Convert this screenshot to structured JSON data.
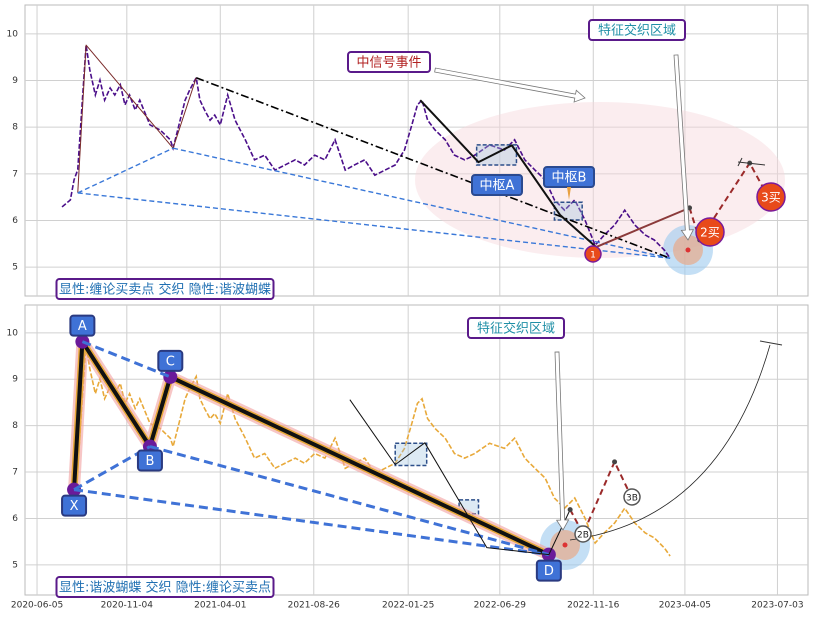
{
  "x_axis": {
    "xlim": [
      -13,
      833
    ],
    "xticks": [
      {
        "value": 0,
        "label": "2020-06-05"
      },
      {
        "value": 97,
        "label": "2020-11-04"
      },
      {
        "value": 198,
        "label": "2021-04-01"
      },
      {
        "value": 299,
        "label": "2021-08-26"
      },
      {
        "value": 401,
        "label": "2022-01-25"
      },
      {
        "value": 500,
        "label": "2022-06-29"
      },
      {
        "value": 601,
        "label": "2022-11-16"
      },
      {
        "value": 700,
        "label": "2023-04-05"
      },
      {
        "value": 800,
        "label": "2023-07-03"
      }
    ]
  },
  "chart_data": [
    {
      "type": "line",
      "ylim": [
        4.38,
        10.62
      ],
      "yticks": [
        5,
        6,
        7,
        8,
        9,
        10
      ],
      "grid": true,
      "x": [
        27,
        36,
        40,
        44,
        49,
        53,
        57,
        63,
        68,
        73,
        79,
        84,
        90,
        95,
        100,
        106,
        111,
        122,
        133,
        144,
        147,
        152,
        160,
        165,
        172,
        176,
        181,
        187,
        192,
        198,
        206,
        214,
        225,
        235,
        246,
        257,
        268,
        279,
        289,
        300,
        311,
        322,
        333,
        343,
        354,
        365,
        376,
        387,
        397,
        405,
        411,
        416,
        422,
        430,
        441,
        451,
        462,
        473,
        489,
        505,
        516,
        527,
        538,
        549,
        559,
        570,
        581,
        592,
        603,
        613,
        624,
        635,
        646,
        657,
        667,
        678,
        684
      ],
      "series": [
        {
          "color": "#4b0f8a",
          "values": [
            6.29,
            6.44,
            6.87,
            7.09,
            8.58,
            9.76,
            9.23,
            8.69,
            9.01,
            8.58,
            8.84,
            8.69,
            8.91,
            8.48,
            8.69,
            8.37,
            8.58,
            8.05,
            7.94,
            7.73,
            7.55,
            7.94,
            8.58,
            8.8,
            9.06,
            8.58,
            8.37,
            8.15,
            8.26,
            8.05,
            8.69,
            8.15,
            7.73,
            7.3,
            7.4,
            7.08,
            7.19,
            7.3,
            7.19,
            7.4,
            7.3,
            7.73,
            7.08,
            7.19,
            7.3,
            6.97,
            7.08,
            7.19,
            7.51,
            8.05,
            8.48,
            8.58,
            8.15,
            7.94,
            7.73,
            7.4,
            7.3,
            7.4,
            7.62,
            7.51,
            7.73,
            7.3,
            7.08,
            6.87,
            6.44,
            6.22,
            6.44,
            6.01,
            5.47,
            5.69,
            5.9,
            6.22,
            5.9,
            5.69,
            5.58,
            5.36,
            5.19
          ]
        }
      ],
      "overlays": [
        {
          "style": "thin",
          "color": "#7a2a2a",
          "x": [
            44,
            53,
            147,
            172
          ],
          "y": [
            6.59,
            9.76,
            7.55,
            9.06
          ]
        },
        {
          "style": "dash",
          "color": "#3a78d8",
          "x": [
            44,
            147
          ],
          "y": [
            6.59,
            7.55
          ]
        },
        {
          "style": "dash",
          "color": "#3a78d8",
          "x": [
            44,
            684
          ],
          "y": [
            6.59,
            5.19
          ]
        },
        {
          "style": "dash",
          "color": "#3a78d8",
          "x": [
            147,
            684
          ],
          "y": [
            7.55,
            5.19
          ]
        },
        {
          "style": "dashdot",
          "color": "#000000",
          "x": [
            172,
            684
          ],
          "y": [
            9.06,
            5.19
          ]
        },
        {
          "style": "bi",
          "color": "#111111",
          "x": [
            414,
            477,
            513,
            565,
            604
          ],
          "y": [
            8.58,
            7.25,
            7.61,
            6.12,
            5.43
          ]
        },
        {
          "style": "bi",
          "color": "#8b3a3a",
          "x": [
            604,
            705
          ],
          "y": [
            5.43,
            6.27
          ]
        },
        {
          "style": "pred",
          "color": "#9b2a2a",
          "x": [
            705,
            716,
            770,
            786
          ],
          "y": [
            6.27,
            5.58,
            7.23,
            6.65
          ]
        }
      ],
      "boxes": [
        {
          "x": [
            475,
            518
          ],
          "y": [
            7.19,
            7.62
          ]
        },
        {
          "x": [
            559,
            589
          ],
          "y": [
            6.01,
            6.39
          ]
        }
      ],
      "labels": [
        "中信号事件",
        "特征交织区域",
        "中枢A",
        "中枢B",
        "1",
        "2买",
        "3买"
      ],
      "legend": "显性:缠论买卖点 交织 隐性:谐波蝴蝶"
    },
    {
      "type": "line",
      "ylim": [
        4.35,
        10.6
      ],
      "yticks": [
        5,
        6,
        7,
        8,
        9,
        10
      ],
      "grid": true,
      "x": [
        27,
        36,
        40,
        44,
        49,
        53,
        57,
        63,
        68,
        73,
        79,
        84,
        90,
        95,
        100,
        106,
        111,
        122,
        133,
        144,
        147,
        152,
        160,
        165,
        172,
        176,
        181,
        187,
        192,
        198,
        206,
        214,
        225,
        235,
        246,
        257,
        268,
        279,
        289,
        300,
        311,
        322,
        333,
        343,
        354,
        365,
        376,
        387,
        397,
        405,
        411,
        416,
        422,
        430,
        441,
        451,
        462,
        473,
        489,
        505,
        516,
        527,
        538,
        549,
        559,
        570,
        581,
        592,
        603,
        613,
        624,
        635,
        646,
        657,
        667,
        678,
        684
      ],
      "series": [
        {
          "color": "#e8a93a",
          "values": [
            6.29,
            6.44,
            6.87,
            7.09,
            8.58,
            9.76,
            9.23,
            8.69,
            9.01,
            8.58,
            8.84,
            8.69,
            8.91,
            8.48,
            8.69,
            8.37,
            8.58,
            8.05,
            7.94,
            7.73,
            7.55,
            7.94,
            8.58,
            8.8,
            9.06,
            8.58,
            8.37,
            8.15,
            8.26,
            8.05,
            8.69,
            8.15,
            7.73,
            7.3,
            7.4,
            7.08,
            7.19,
            7.3,
            7.19,
            7.4,
            7.3,
            7.73,
            7.08,
            7.19,
            7.3,
            6.97,
            7.08,
            7.19,
            7.51,
            8.05,
            8.48,
            8.58,
            8.15,
            7.94,
            7.73,
            7.4,
            7.3,
            7.4,
            7.62,
            7.51,
            7.73,
            7.3,
            7.08,
            6.87,
            6.44,
            6.22,
            6.44,
            6.01,
            5.47,
            5.69,
            5.9,
            6.22,
            5.9,
            5.69,
            5.58,
            5.36,
            5.19
          ]
        }
      ],
      "overlays": [
        {
          "style": "pattern",
          "color": "#111111",
          "x": [
            40,
            49,
            122,
            144,
            553
          ],
          "y": [
            6.62,
            9.81,
            7.55,
            9.05,
            5.22
          ]
        },
        {
          "style": "thickdash",
          "color": "#3f72d6",
          "x": [
            49,
            144
          ],
          "y": [
            9.81,
            9.05
          ]
        },
        {
          "style": "thickdash",
          "color": "#3f72d6",
          "x": [
            40,
            122
          ],
          "y": [
            6.62,
            7.55
          ]
        },
        {
          "style": "thickdash",
          "color": "#3f72d6",
          "x": [
            40,
            553
          ],
          "y": [
            6.62,
            5.22
          ]
        },
        {
          "style": "thickdash",
          "color": "#3f72d6",
          "x": [
            122,
            553
          ],
          "y": [
            7.55,
            5.22
          ]
        },
        {
          "style": "thin",
          "color": "#111111",
          "x": [
            338,
            387,
            419,
            486,
            553,
            576
          ],
          "y": [
            8.56,
            7.16,
            7.63,
            5.37,
            5.22,
            6.19
          ]
        },
        {
          "style": "pred",
          "color": "#9b2a2a",
          "x": [
            576,
            590,
            624,
            642
          ],
          "y": [
            6.19,
            5.67,
            7.22,
            6.47
          ]
        }
      ],
      "boxes": [
        {
          "x": [
            387,
            421
          ],
          "y": [
            7.14,
            7.62
          ]
        },
        {
          "x": [
            456,
            477
          ],
          "y": [
            6.1,
            6.4
          ]
        }
      ],
      "pattern_labels": [
        "X",
        "A",
        "B",
        "C",
        "D"
      ],
      "labels": [
        "特征交织区域",
        "2B",
        "3B"
      ],
      "legend": "显性:谐波蝴蝶 交织 隐性:缠论买卖点"
    }
  ]
}
